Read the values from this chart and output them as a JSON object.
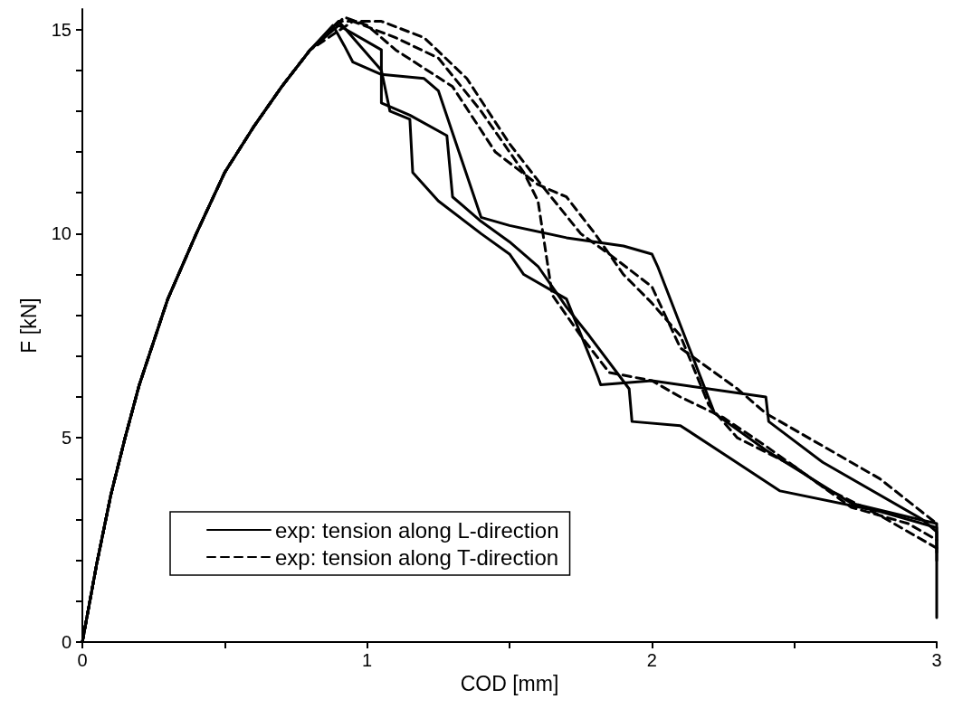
{
  "chart_data": {
    "type": "line",
    "xlabel": "COD [mm]",
    "ylabel": "F [kN]",
    "xlim": [
      0,
      3
    ],
    "ylim": [
      0,
      15.5
    ],
    "xticks": [
      0,
      {
        "value": 0.5,
        "label": null
      },
      1,
      {
        "value": 1.5,
        "label": null
      },
      2,
      {
        "value": 2.5,
        "label": null
      },
      3
    ],
    "yticks": [
      0,
      {
        "value": 1,
        "label": null
      },
      {
        "value": 2,
        "label": null
      },
      {
        "value": 3,
        "label": null
      },
      {
        "value": 4,
        "label": null
      },
      5,
      {
        "value": 6,
        "label": null
      },
      {
        "value": 7,
        "label": null
      },
      {
        "value": 8,
        "label": null
      },
      {
        "value": 9,
        "label": null
      },
      10,
      {
        "value": 11,
        "label": null
      },
      {
        "value": 12,
        "label": null
      },
      {
        "value": 13,
        "label": null
      },
      {
        "value": 14,
        "label": null
      },
      15
    ],
    "grid": false,
    "legend": "bottom left",
    "marker": "none",
    "series": [
      {
        "name": "exp: tension along L-direction",
        "color": "#000000",
        "line_style": "solid",
        "x": [
          0,
          0.05,
          0.1,
          0.15,
          0.2,
          0.3,
          0.4,
          0.5,
          0.6,
          0.7,
          0.8,
          0.9,
          1.05,
          1.05,
          1.15,
          1.28,
          1.3,
          1.4,
          1.5,
          1.6,
          1.7,
          1.78,
          1.92,
          1.93,
          2.1,
          2.45,
          2.8,
          3.0,
          3.0
        ],
        "values": [
          0,
          1.9,
          3.6,
          5.0,
          6.3,
          8.4,
          10.0,
          11.5,
          12.6,
          13.6,
          14.5,
          15.1,
          14.5,
          13.2,
          12.9,
          12.4,
          10.9,
          10.3,
          9.8,
          9.2,
          8.2,
          7.5,
          6.2,
          5.4,
          5.3,
          3.7,
          3.2,
          2.8,
          0.6
        ]
      },
      {
        "color": "#000000",
        "line_style": "solid",
        "x": [
          0,
          0.05,
          0.1,
          0.15,
          0.2,
          0.3,
          0.4,
          0.5,
          0.6,
          0.7,
          0.8,
          0.88,
          0.92,
          0.95,
          1.05,
          1.2,
          1.25,
          1.4,
          1.5,
          1.7,
          1.9,
          2.0,
          2.02,
          2.22,
          2.4,
          2.7,
          3.0,
          3.0
        ],
        "values": [
          0,
          1.9,
          3.6,
          5.0,
          6.3,
          8.4,
          10.0,
          11.5,
          12.6,
          13.6,
          14.5,
          15.1,
          14.6,
          14.2,
          13.9,
          13.8,
          13.5,
          10.4,
          10.2,
          9.9,
          9.7,
          9.5,
          9.2,
          5.6,
          4.7,
          3.4,
          2.9,
          2.0
        ]
      },
      {
        "color": "#000000",
        "line_style": "solid",
        "x": [
          0,
          0.05,
          0.1,
          0.15,
          0.2,
          0.3,
          0.4,
          0.5,
          0.6,
          0.7,
          0.8,
          0.9,
          1.05,
          1.08,
          1.15,
          1.16,
          1.25,
          1.4,
          1.5,
          1.55,
          1.7,
          1.81,
          1.82,
          2.0,
          2.4,
          2.41,
          2.6,
          2.95,
          3.0,
          3.0
        ],
        "values": [
          0,
          1.9,
          3.6,
          5.0,
          6.3,
          8.4,
          10.0,
          11.5,
          12.6,
          13.6,
          14.5,
          15.2,
          14.0,
          13.0,
          12.8,
          11.5,
          10.8,
          10.0,
          9.5,
          9.0,
          8.4,
          6.5,
          6.3,
          6.4,
          6.0,
          5.4,
          4.4,
          3.0,
          2.7,
          2.2
        ]
      },
      {
        "name": "exp: tension along T-direction",
        "color": "#000000",
        "line_style": "dashed",
        "x": [
          0,
          0.05,
          0.1,
          0.15,
          0.2,
          0.3,
          0.4,
          0.5,
          0.6,
          0.7,
          0.8,
          0.92,
          1.0,
          1.1,
          1.3,
          1.45,
          1.6,
          1.7,
          1.8,
          1.9,
          2.0,
          2.1,
          2.2,
          2.3,
          2.5,
          2.7,
          2.9,
          3.0
        ],
        "values": [
          0,
          1.9,
          3.6,
          5.0,
          6.3,
          8.4,
          10.0,
          11.5,
          12.6,
          13.6,
          14.5,
          15.3,
          15.1,
          14.5,
          13.6,
          12.0,
          11.2,
          10.9,
          10.0,
          9.0,
          8.3,
          7.5,
          5.8,
          5.0,
          4.3,
          3.3,
          2.9,
          2.5
        ]
      },
      {
        "color": "#000000",
        "line_style": "dashed",
        "x": [
          0,
          0.05,
          0.1,
          0.15,
          0.2,
          0.3,
          0.4,
          0.5,
          0.6,
          0.7,
          0.8,
          0.95,
          1.1,
          1.25,
          1.4,
          1.55,
          1.6,
          1.65,
          1.75,
          1.85,
          2.0,
          2.1,
          2.25,
          2.4,
          2.6,
          2.8,
          3.0
        ],
        "values": [
          0,
          1.9,
          3.6,
          5.0,
          6.3,
          8.4,
          10.0,
          11.5,
          12.6,
          13.6,
          14.5,
          15.2,
          14.8,
          14.3,
          13.0,
          11.5,
          10.8,
          8.5,
          7.5,
          6.6,
          6.4,
          6.0,
          5.5,
          4.8,
          3.8,
          3.1,
          2.3
        ]
      },
      {
        "color": "#000000",
        "line_style": "dashed",
        "x": [
          0,
          0.05,
          0.1,
          0.15,
          0.2,
          0.3,
          0.4,
          0.5,
          0.6,
          0.7,
          0.8,
          0.9,
          1.05,
          1.2,
          1.35,
          1.5,
          1.6,
          1.75,
          1.85,
          2.0,
          2.1,
          2.3,
          2.4,
          2.6,
          2.8,
          3.0
        ],
        "values": [
          0,
          1.9,
          3.6,
          5.0,
          6.3,
          8.4,
          10.0,
          11.5,
          12.6,
          13.6,
          14.5,
          15.2,
          15.2,
          14.8,
          13.8,
          12.2,
          11.3,
          10.0,
          9.5,
          8.7,
          7.2,
          6.2,
          5.6,
          4.8,
          4.0,
          2.9
        ]
      }
    ]
  }
}
